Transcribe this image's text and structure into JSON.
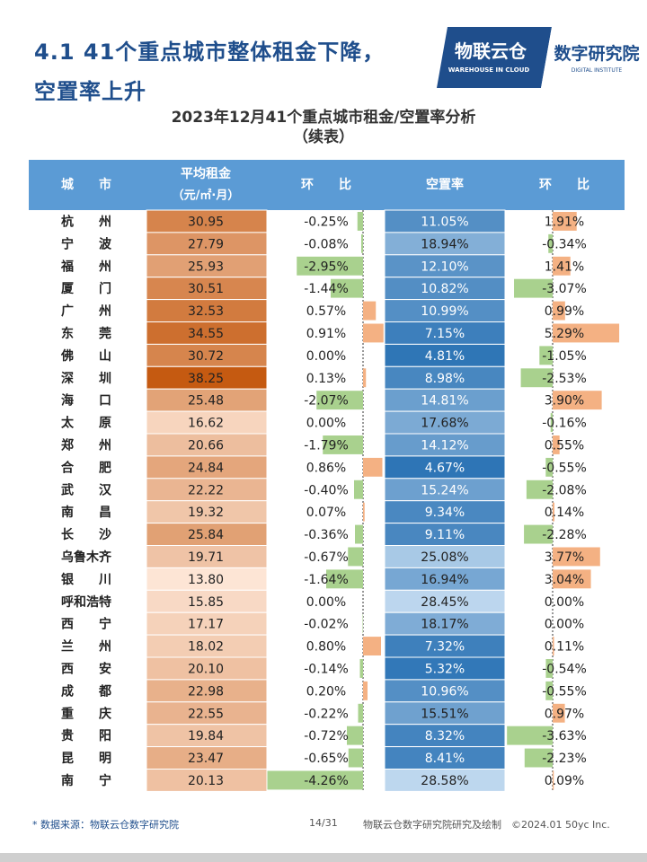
{
  "header": {
    "title_line1": "4.1 41个重点城市整体租金下降，",
    "title_line2": "空置率上升",
    "logo_left_text": "物联云仓",
    "logo_left_sub": "WAREHOUSE IN CLOUD",
    "logo_right_text": "数字研究院",
    "logo_right_sub": "DIGITAL INSTITUTE"
  },
  "chart_title_line1": "2023年12月41个重点城市租金/空置率分析",
  "chart_title_line2": "（续表）",
  "colors": {
    "header_bg": "#5b9bd5",
    "rent_light": "#fde5d5",
    "rent_dark": "#c55a11",
    "vac_light": "#bdd7ee",
    "vac_dark": "#2e75b6",
    "pos_bar": "#f4b183",
    "neg_bar": "#a9d18e"
  },
  "chart_data": {
    "type": "table",
    "columns": [
      "城　　市",
      "平均租金",
      "（元/㎡·月）",
      "环　　比",
      "空置率",
      "环　　比"
    ],
    "rows": [
      {
        "city": "杭　　州",
        "rent": 30.95,
        "rent_mom": -0.25,
        "vacancy": 11.05,
        "vac_mom": 1.91
      },
      {
        "city": "宁　　波",
        "rent": 27.79,
        "rent_mom": -0.08,
        "vacancy": 18.94,
        "vac_mom": -0.34
      },
      {
        "city": "福　　州",
        "rent": 25.93,
        "rent_mom": -2.95,
        "vacancy": 12.1,
        "vac_mom": 1.41
      },
      {
        "city": "厦　　门",
        "rent": 30.51,
        "rent_mom": -1.44,
        "vacancy": 10.82,
        "vac_mom": -3.07
      },
      {
        "city": "广　　州",
        "rent": 32.53,
        "rent_mom": 0.57,
        "vacancy": 10.99,
        "vac_mom": 0.99
      },
      {
        "city": "东　　莞",
        "rent": 34.55,
        "rent_mom": 0.91,
        "vacancy": 7.15,
        "vac_mom": 5.29
      },
      {
        "city": "佛　　山",
        "rent": 30.72,
        "rent_mom": 0.0,
        "vacancy": 4.81,
        "vac_mom": -1.05
      },
      {
        "city": "深　　圳",
        "rent": 38.25,
        "rent_mom": 0.13,
        "vacancy": 8.98,
        "vac_mom": -2.53
      },
      {
        "city": "海　　口",
        "rent": 25.48,
        "rent_mom": -2.07,
        "vacancy": 14.81,
        "vac_mom": 3.9
      },
      {
        "city": "太　　原",
        "rent": 16.62,
        "rent_mom": 0.0,
        "vacancy": 17.68,
        "vac_mom": -0.16
      },
      {
        "city": "郑　　州",
        "rent": 20.66,
        "rent_mom": -1.79,
        "vacancy": 14.12,
        "vac_mom": 0.55
      },
      {
        "city": "合　　肥",
        "rent": 24.84,
        "rent_mom": 0.86,
        "vacancy": 4.67,
        "vac_mom": -0.55
      },
      {
        "city": "武　　汉",
        "rent": 22.22,
        "rent_mom": -0.4,
        "vacancy": 15.24,
        "vac_mom": -2.08
      },
      {
        "city": "南　　昌",
        "rent": 19.32,
        "rent_mom": 0.07,
        "vacancy": 9.34,
        "vac_mom": 0.14
      },
      {
        "city": "长　　沙",
        "rent": 25.84,
        "rent_mom": -0.36,
        "vacancy": 9.11,
        "vac_mom": -2.28
      },
      {
        "city": "乌鲁木齐",
        "rent": 19.71,
        "rent_mom": -0.67,
        "vacancy": 25.08,
        "vac_mom": 3.77
      },
      {
        "city": "银　　川",
        "rent": 13.8,
        "rent_mom": -1.64,
        "vacancy": 16.94,
        "vac_mom": 3.04
      },
      {
        "city": "呼和浩特",
        "rent": 15.85,
        "rent_mom": 0.0,
        "vacancy": 28.45,
        "vac_mom": 0.0
      },
      {
        "city": "西　　宁",
        "rent": 17.17,
        "rent_mom": -0.02,
        "vacancy": 18.17,
        "vac_mom": 0.0
      },
      {
        "city": "兰　　州",
        "rent": 18.02,
        "rent_mom": 0.8,
        "vacancy": 7.32,
        "vac_mom": 0.11
      },
      {
        "city": "西　　安",
        "rent": 20.1,
        "rent_mom": -0.14,
        "vacancy": 5.32,
        "vac_mom": -0.54
      },
      {
        "city": "成　　都",
        "rent": 22.98,
        "rent_mom": 0.2,
        "vacancy": 10.96,
        "vac_mom": -0.55
      },
      {
        "city": "重　　庆",
        "rent": 22.55,
        "rent_mom": -0.22,
        "vacancy": 15.51,
        "vac_mom": 0.97
      },
      {
        "city": "贵　　阳",
        "rent": 19.84,
        "rent_mom": -0.72,
        "vacancy": 8.32,
        "vac_mom": -3.63
      },
      {
        "city": "昆　　明",
        "rent": 23.47,
        "rent_mom": -0.65,
        "vacancy": 8.41,
        "vac_mom": -2.23
      },
      {
        "city": "南　　宁",
        "rent": 20.13,
        "rent_mom": -4.26,
        "vacancy": 28.58,
        "vac_mom": 0.09
      }
    ]
  },
  "footer": {
    "source": "* 数据来源：物联云仓数字研究院",
    "page": "14/31",
    "credit": "物联云仓数字研究院研究及绘制　©2024.01 50yc Inc."
  }
}
